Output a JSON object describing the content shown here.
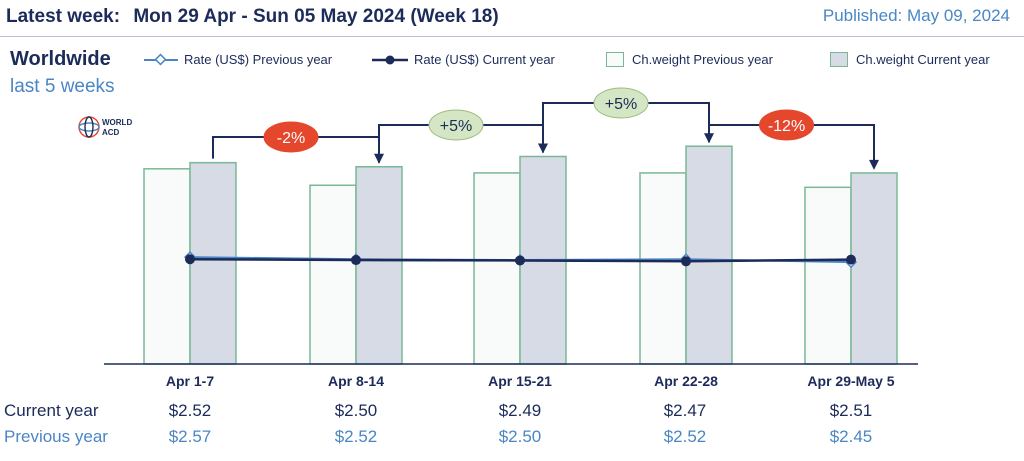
{
  "header": {
    "latest_label": "Latest week:",
    "week_text": "Mon 29 Apr - Sun 05 May 2024 (Week 18)",
    "published": "Published: May 09, 2024"
  },
  "region": "Worldwide",
  "period": "last 5 weeks",
  "logo_text_1": "WORLD",
  "logo_text_2": "ACD",
  "legend": {
    "rate_prev": "Rate (US$) Previous year",
    "rate_cur": "Rate (US$) Current year",
    "cw_prev": "Ch.weight Previous year",
    "cw_cur": "Ch.weight Current year"
  },
  "colors": {
    "navy": "#1c2b5a",
    "blue": "#4a86c5",
    "bar_prev_fill": "#f9fbfa",
    "bar_cur_fill": "#d6dbe6",
    "bar_border": "#7ab895",
    "badge_red": "#e5472d",
    "badge_green": "#d4e6c3"
  },
  "row_labels": {
    "current": "Current year",
    "previous": "Previous year"
  },
  "chart_data": {
    "type": "bar",
    "categories": [
      "Apr 1-7",
      "Apr 8-14",
      "Apr 15-21",
      "Apr 22-28",
      "Apr 29-May 5"
    ],
    "series": [
      {
        "name": "Ch.weight Previous year",
        "values": [
          95,
          87,
          93,
          93,
          86
        ]
      },
      {
        "name": "Ch.weight Current year",
        "values": [
          98,
          96,
          101,
          106,
          93
        ]
      },
      {
        "name": "Rate (US$) Previous year",
        "values": [
          2.57,
          2.52,
          2.5,
          2.52,
          2.45
        ]
      },
      {
        "name": "Rate (US$) Current year",
        "values": [
          2.52,
          2.5,
          2.49,
          2.47,
          2.51
        ]
      }
    ],
    "weight_ylim": [
      0,
      110
    ],
    "rate_ylim": [
      0,
      5
    ],
    "changes": [
      "-2%",
      "+5%",
      "+5%",
      "-12%"
    ],
    "change_colors": [
      "red",
      "green",
      "green",
      "red"
    ],
    "current_values_text": [
      "$2.52",
      "$2.50",
      "$2.49",
      "$2.47",
      "$2.51"
    ],
    "previous_values_text": [
      "$2.57",
      "$2.52",
      "$2.50",
      "$2.52",
      "$2.45"
    ]
  }
}
